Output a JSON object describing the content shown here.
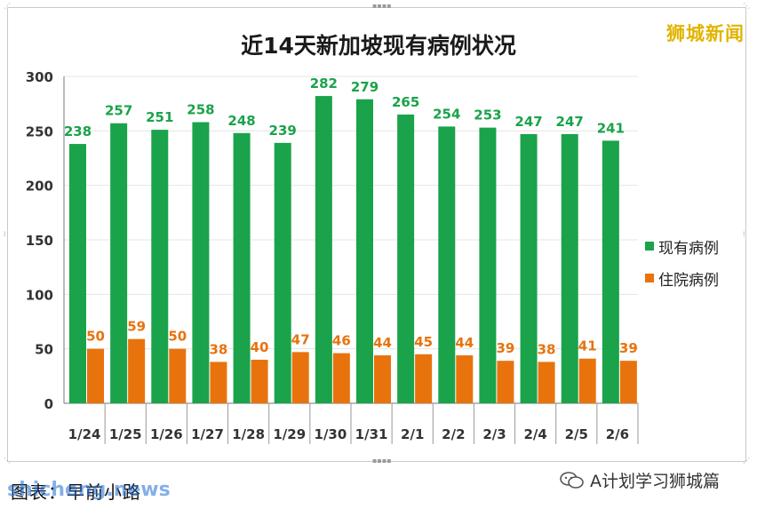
{
  "brand": {
    "top_watermark": "狮城新闻",
    "footer_left": "图表：早前小路",
    "footer_watermark": "shicheng.news",
    "footer_right": "A计划学习狮城篇"
  },
  "colors": {
    "current": "#1aa34a",
    "hospital": "#e8730d",
    "axis": "#444444",
    "brand": "#e2b400"
  },
  "chart_data": {
    "type": "bar",
    "title": "近14天新加坡现有病例状况",
    "categories": [
      "1/24",
      "1/25",
      "1/26",
      "1/27",
      "1/28",
      "1/29",
      "1/30",
      "1/31",
      "2/1",
      "2/2",
      "2/3",
      "2/4",
      "2/5",
      "2/6"
    ],
    "series": [
      {
        "name": "现有病例",
        "values": [
          238,
          257,
          251,
          258,
          248,
          239,
          282,
          279,
          265,
          254,
          253,
          247,
          247,
          241
        ]
      },
      {
        "name": "住院病例",
        "values": [
          50,
          59,
          50,
          38,
          40,
          47,
          46,
          44,
          45,
          44,
          39,
          38,
          41,
          39
        ]
      }
    ],
    "yticks": [
      "0",
      "50",
      "100",
      "150",
      "200",
      "250",
      "300"
    ],
    "ylim": [
      0,
      300
    ],
    "grid": true,
    "legend_position": "right"
  },
  "icons": {
    "wechat": "wechat-icon"
  }
}
